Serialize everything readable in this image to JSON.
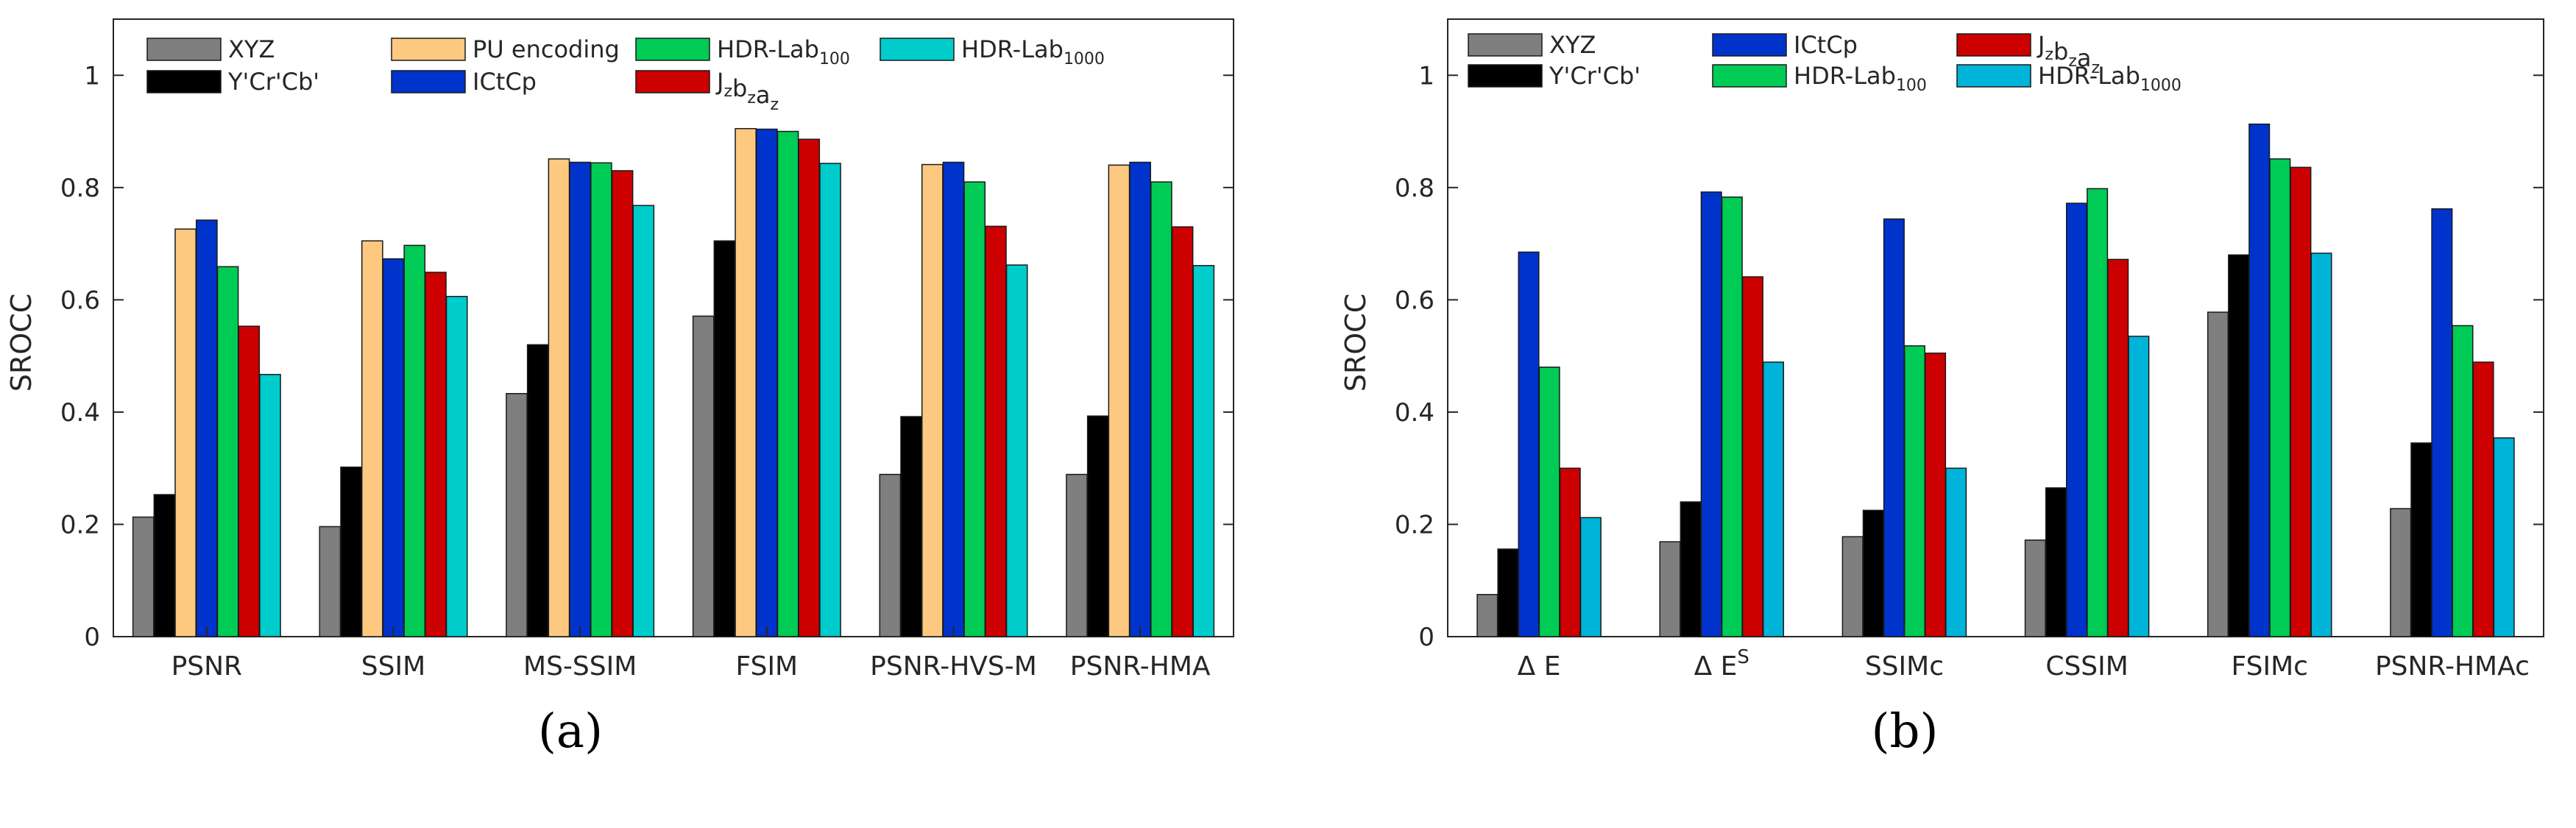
{
  "chart_data": [
    {
      "type": "bar",
      "panel_label": "(a)",
      "ylabel": "SROCC",
      "ylim": [
        0,
        1.1
      ],
      "yticks": [
        0,
        0.2,
        0.4,
        0.6,
        0.8,
        1
      ],
      "ytick_labels": [
        "0",
        "0.2",
        "0.4",
        "0.6",
        "0.8",
        "1"
      ],
      "categories": [
        "PSNR",
        "SSIM",
        "MS-SSIM",
        "FSIM",
        "PSNR-HVS-M",
        "PSNR-HMA"
      ],
      "legend_layout": "grid-2x4-top",
      "series": [
        {
          "name": "XYZ",
          "sub": "",
          "color": "#7f7f7f",
          "legend_slot": [
            0,
            0
          ],
          "values": [
            0.213,
            0.196,
            0.433,
            0.571,
            0.289,
            0.289
          ]
        },
        {
          "name": "Y'Cr'Cb'",
          "sub": "",
          "color": "#000000",
          "legend_slot": [
            1,
            0
          ],
          "values": [
            0.253,
            0.302,
            0.52,
            0.705,
            0.392,
            0.393
          ]
        },
        {
          "name": "PU encoding",
          "sub": "",
          "color": "#fdc980",
          "legend_slot": [
            0,
            1
          ],
          "values": [
            0.726,
            0.705,
            0.851,
            0.905,
            0.841,
            0.84
          ]
        },
        {
          "name": "ICtCp",
          "sub": "",
          "color": "#0033cc",
          "legend_slot": [
            1,
            1
          ],
          "values": [
            0.742,
            0.673,
            0.845,
            0.904,
            0.845,
            0.845
          ]
        },
        {
          "name": "HDR-Lab",
          "sub": "100",
          "color": "#00cc55",
          "legend_slot": [
            0,
            2
          ],
          "values": [
            0.659,
            0.697,
            0.844,
            0.9,
            0.81,
            0.81
          ]
        },
        {
          "name": "Jzbzaz",
          "sub": "",
          "color": "#cc0000",
          "legend_slot": [
            1,
            2
          ],
          "values": [
            0.553,
            0.649,
            0.83,
            0.886,
            0.731,
            0.73
          ]
        },
        {
          "name": "HDR-Lab",
          "sub": "1000",
          "color": "#00cccc",
          "legend_slot": [
            0,
            3
          ],
          "values": [
            0.467,
            0.606,
            0.768,
            0.843,
            0.662,
            0.661
          ]
        }
      ]
    },
    {
      "type": "bar",
      "panel_label": "(b)",
      "ylabel": "SROCC",
      "ylim": [
        0,
        1.1
      ],
      "yticks": [
        0,
        0.2,
        0.4,
        0.6,
        0.8,
        1
      ],
      "ytick_labels": [
        "0",
        "0.2",
        "0.4",
        "0.6",
        "0.8",
        "1"
      ],
      "categories": [
        "Δ E",
        "Δ ES",
        "SSIMc",
        "CSSIM",
        "FSIMc",
        "PSNR-HMAc"
      ],
      "legend_layout": "grid-2x3-top",
      "series": [
        {
          "name": "XYZ",
          "sub": "",
          "color": "#7f7f7f",
          "legend_slot": [
            0,
            0
          ],
          "values": [
            0.075,
            0.169,
            0.178,
            0.172,
            0.578,
            0.228
          ]
        },
        {
          "name": "Y'Cr'Cb'",
          "sub": "",
          "color": "#000000",
          "legend_slot": [
            1,
            0
          ],
          "values": [
            0.156,
            0.24,
            0.225,
            0.265,
            0.68,
            0.345
          ]
        },
        {
          "name": "ICtCp",
          "sub": "",
          "color": "#0033cc",
          "legend_slot": [
            0,
            1
          ],
          "values": [
            0.685,
            0.792,
            0.744,
            0.772,
            0.913,
            0.762
          ]
        },
        {
          "name": "HDR-Lab",
          "sub": "100",
          "color": "#00cc55",
          "legend_slot": [
            1,
            1
          ],
          "values": [
            0.48,
            0.783,
            0.518,
            0.798,
            0.851,
            0.554
          ]
        },
        {
          "name": "Jzbzaz",
          "sub": "",
          "color": "#cc0000",
          "legend_slot": [
            0,
            2
          ],
          "values": [
            0.3,
            0.641,
            0.505,
            0.672,
            0.836,
            0.489
          ]
        },
        {
          "name": "HDR-Lab",
          "sub": "1000",
          "color": "#00b3d9",
          "legend_slot": [
            1,
            2
          ],
          "values": [
            0.212,
            0.489,
            0.3,
            0.535,
            0.683,
            0.354
          ]
        }
      ]
    }
  ]
}
